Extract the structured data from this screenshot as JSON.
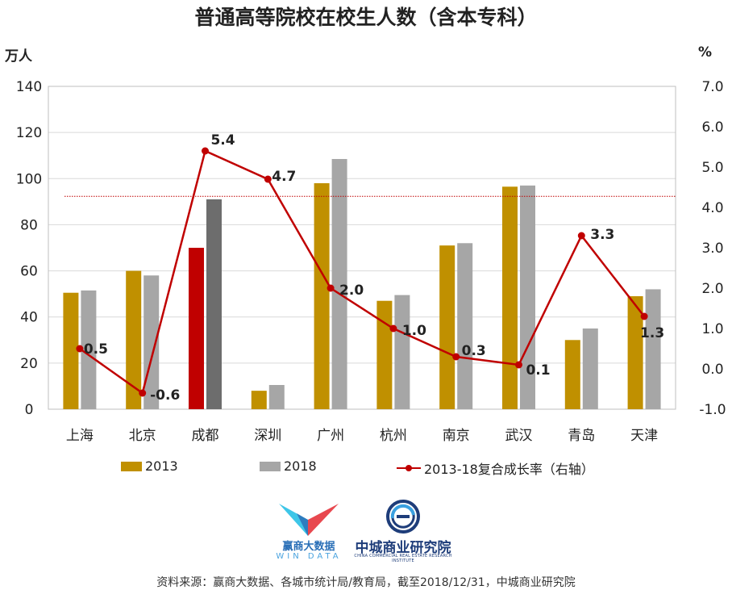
{
  "chart_data": {
    "type": "bar",
    "title": "普通高等院校在校生人数（含本专科）",
    "left_unit": "万人",
    "right_unit": "%",
    "categories": [
      "上海",
      "北京",
      "成都",
      "深圳",
      "广州",
      "杭州",
      "南京",
      "武汉",
      "青岛",
      "天津"
    ],
    "series": [
      {
        "name": "2013",
        "axis": "left",
        "color": "#c09000",
        "values": [
          50.5,
          60,
          70,
          8,
          98,
          47,
          71,
          96.5,
          30,
          49
        ]
      },
      {
        "name": "2018",
        "axis": "left",
        "color": "#a6a6a6",
        "values": [
          51.5,
          58,
          91,
          10.5,
          108.5,
          49.5,
          72,
          97,
          35,
          52
        ]
      },
      {
        "name": "2013-18复合成长率（右轴）",
        "axis": "right",
        "type": "line",
        "color": "#c00000",
        "values": [
          0.5,
          -0.6,
          5.4,
          4.7,
          2.0,
          1.0,
          0.3,
          0.1,
          3.3,
          1.3
        ],
        "labels": [
          "0.5",
          "-0.6",
          "5.4",
          "4.7",
          "2.0",
          "1.0",
          "0.3",
          "0.1",
          "3.3",
          "1.3"
        ]
      }
    ],
    "highlight": {
      "category": "成都",
      "color_2013": "#c00000",
      "color_2018": "#6d6d6d"
    },
    "reference_line": {
      "axis": "left",
      "value": 92.3,
      "style": "dotted",
      "color": "#c00000"
    },
    "ylim_left": [
      0,
      140
    ],
    "ylim_right": [
      -1.0,
      7.0
    ],
    "left_ticks": [
      "0",
      "20",
      "40",
      "60",
      "80",
      "100",
      "120",
      "140"
    ],
    "left_tick_values": [
      0,
      20,
      40,
      60,
      80,
      100,
      120,
      140
    ],
    "right_ticks": [
      "-1.0",
      "0.0",
      "1.0",
      "2.0",
      "3.0",
      "4.0",
      "5.0",
      "6.0",
      "7.0"
    ],
    "right_tick_values": [
      -1.0,
      0.0,
      1.0,
      2.0,
      3.0,
      4.0,
      5.0,
      6.0,
      7.0
    ],
    "legend_position": "bottom",
    "grid": true
  },
  "legend": {
    "item_2013": "2013",
    "item_2018": "2018",
    "item_rate": "2013-18复合成长率（右轴）"
  },
  "logos": {
    "win_cn": "赢商大数据",
    "win_en": "WIN DATA",
    "zc_cn": "中城商业研究院",
    "zc_en": "CHINA COMMERCIAL REAL ESTATE RESEARCH INSTITUTE"
  },
  "source": "资料来源：赢商大数据、各城市统计局/教育局，截至2018/12/31，中城商业研究院",
  "colors": {
    "bar_2013": "#c09000",
    "bar_2018": "#a6a6a6",
    "line": "#c00000",
    "grid": "#d9d9d9"
  }
}
